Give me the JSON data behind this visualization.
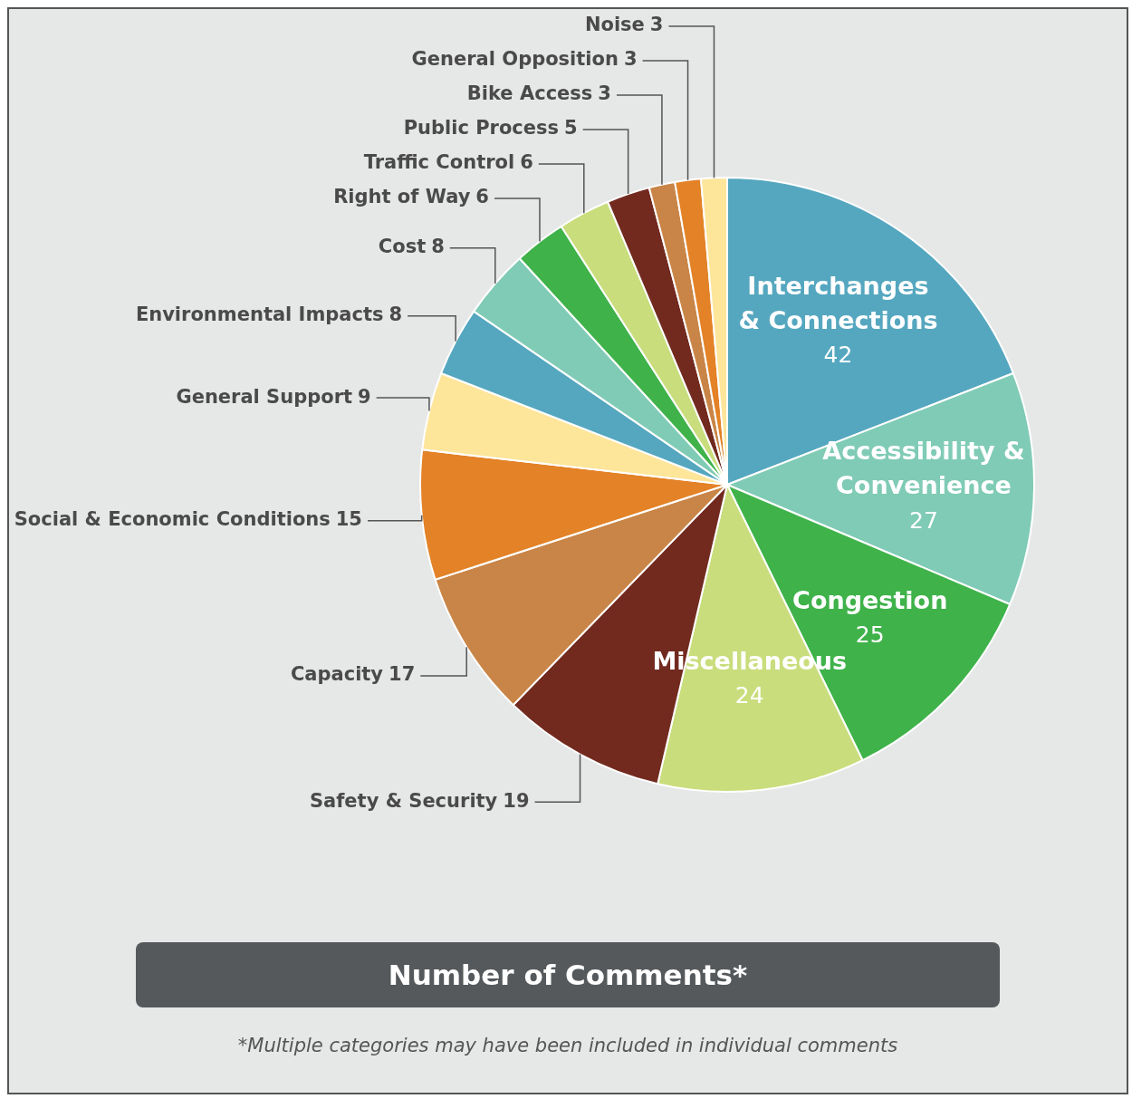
{
  "chart_data": {
    "type": "pie",
    "title": "Number of Comments*",
    "categories": [
      "Interchanges & Connections",
      "Accessibility & Convenience",
      "Congestion",
      "Miscellaneous",
      "Safety & Security",
      "Capacity",
      "Social & Economic Conditions",
      "General Support",
      "Environmental Impacts",
      "Cost",
      "Right of Way",
      "Traffic Control",
      "Public Process",
      "Bike Access",
      "General Opposition",
      "Noise"
    ],
    "values": [
      42,
      27,
      25,
      24,
      19,
      17,
      15,
      9,
      8,
      8,
      6,
      6,
      5,
      3,
      3,
      3
    ],
    "colors": [
      "#55a7bf",
      "#80cbb5",
      "#3fb24a",
      "#c9dd7c",
      "#722a1f",
      "#c98547",
      "#e38226",
      "#fde59a",
      "#55a7bf",
      "#80cbb5",
      "#3fb24a",
      "#c9dd7c",
      "#722a1f",
      "#c98547",
      "#e38226",
      "#fde59a"
    ],
    "data_labels": true,
    "legend": false,
    "annotations": [
      "*Multiple categories may have been included in individual comments"
    ]
  }
}
